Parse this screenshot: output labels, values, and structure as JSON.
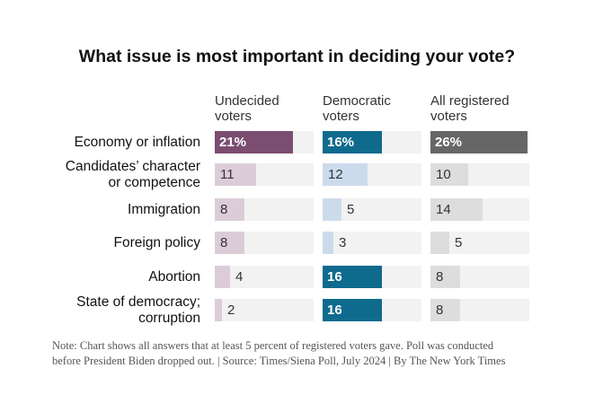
{
  "chart_data": {
    "type": "bar",
    "title": "What issue is most important in deciding your vote?",
    "categories": [
      "Economy or inflation",
      "Candidates’ character or competence",
      "Immigration",
      "Foreign policy",
      "Abortion",
      "State of democracy; corruption"
    ],
    "category_lines": [
      [
        "Economy or inflation"
      ],
      [
        "Candidates’ character",
        "or competence"
      ],
      [
        "Immigration"
      ],
      [
        "Foreign policy"
      ],
      [
        "Abortion"
      ],
      [
        "State of democracy;",
        "corruption"
      ]
    ],
    "value_labels": [
      [
        "21%",
        "11",
        "8",
        "8",
        "4",
        "2"
      ],
      [
        "16%",
        "12",
        "5",
        "3",
        "16",
        "16"
      ],
      [
        "26%",
        "10",
        "14",
        "5",
        "8",
        "8"
      ]
    ],
    "series": [
      {
        "header": [
          "Undecided",
          "voters"
        ],
        "values": [
          21,
          11,
          8,
          8,
          4,
          2
        ],
        "strong_color": "#7b4e71",
        "light_color": "#dcccd8"
      },
      {
        "header": [
          "Democratic",
          "voters"
        ],
        "values": [
          16,
          12,
          5,
          3,
          16,
          16
        ],
        "strong_color": "#0f6b8e",
        "light_color": "#ccdbec"
      },
      {
        "header": [
          "All registered",
          "voters"
        ],
        "values": [
          26,
          10,
          14,
          5,
          8,
          8
        ],
        "strong_color": "#666666",
        "light_color": "#dddddd"
      }
    ],
    "xlim": [
      0,
      26
    ],
    "note": "Note: Chart shows all answers that at least 5 percent of registered voters gave. Poll was conducted before President Biden dropped out. | Source: Times/Siena Poll, July 2024 | By The New York Times"
  }
}
